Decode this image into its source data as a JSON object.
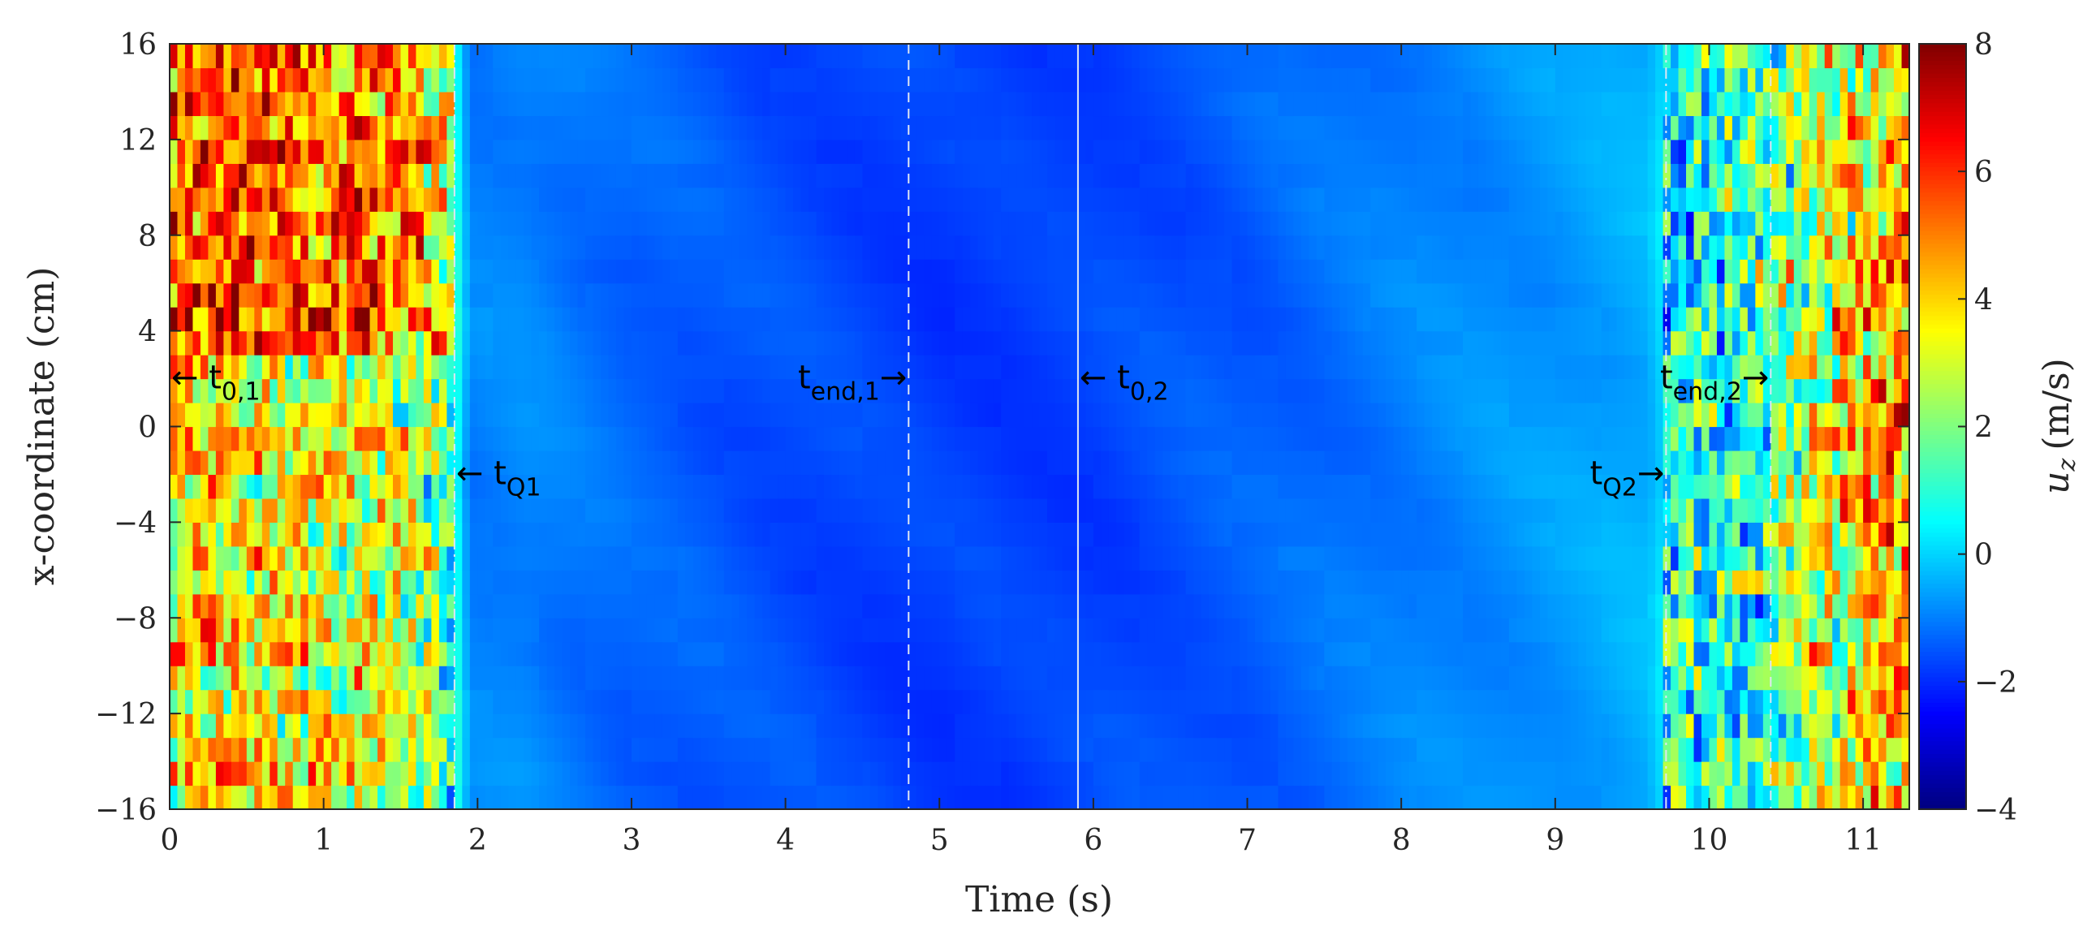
{
  "chart_data": {
    "type": "heatmap",
    "xlabel": "Time (s)",
    "ylabel": "x-coordinate (cm)",
    "colorbar_label": "u",
    "colorbar_label_sub": "z",
    "colorbar_label_unit": "(m/s)",
    "xlim": [
      0,
      11.3
    ],
    "ylim": [
      -16,
      16
    ],
    "clim": [
      -4,
      8
    ],
    "colormap": "jet",
    "x_ticks": [
      "0",
      "1",
      "2",
      "3",
      "4",
      "5",
      "6",
      "7",
      "8",
      "9",
      "10",
      "11"
    ],
    "x_tick_values": [
      0,
      1,
      2,
      3,
      4,
      5,
      6,
      7,
      8,
      9,
      10,
      11
    ],
    "y_ticks": [
      "16",
      "12",
      "8",
      "4",
      "0",
      "−4",
      "−8",
      "−12",
      "−16"
    ],
    "y_tick_values": [
      16,
      12,
      8,
      4,
      0,
      -4,
      -8,
      -12,
      -16
    ],
    "c_ticks": [
      "8",
      "6",
      "4",
      "2",
      "0",
      "−2",
      "−4"
    ],
    "c_tick_values": [
      8,
      6,
      4,
      2,
      0,
      -2,
      -4
    ],
    "time_profile": [
      {
        "t": 0.0,
        "u": 4.5
      },
      {
        "t": 1.5,
        "u": 3.6
      },
      {
        "t": 1.8,
        "u": 2.2
      },
      {
        "t": 1.95,
        "u": -1.0
      },
      {
        "t": 2.3,
        "u": -0.9
      },
      {
        "t": 3.0,
        "u": -1.3
      },
      {
        "t": 4.0,
        "u": -1.6
      },
      {
        "t": 5.0,
        "u": -1.8
      },
      {
        "t": 5.9,
        "u": -1.75
      },
      {
        "t": 7.0,
        "u": -1.4
      },
      {
        "t": 8.0,
        "u": -1.0
      },
      {
        "t": 9.0,
        "u": -0.7
      },
      {
        "t": 9.6,
        "u": -0.4
      },
      {
        "t": 9.75,
        "u": 0.5
      },
      {
        "t": 10.4,
        "u": 1.5
      },
      {
        "t": 11.0,
        "u": 4.0
      },
      {
        "t": 11.3,
        "u": 4.6
      }
    ],
    "markers": [
      {
        "name": "t_0,1",
        "base": "t",
        "sub": "0,1",
        "t": 0.0,
        "y": 2,
        "line_style": "none",
        "arrow": "left"
      },
      {
        "name": "t_Q1",
        "base": "t",
        "sub": "Q1",
        "t": 1.85,
        "y": -2,
        "line_style": "dashdot",
        "arrow": "left"
      },
      {
        "name": "t_end,1",
        "base": "t",
        "sub": "end,1",
        "t": 4.8,
        "y": 2,
        "line_style": "dashed",
        "arrow": "right"
      },
      {
        "name": "t_0,2",
        "base": "t",
        "sub": "0,2",
        "t": 5.9,
        "y": 2,
        "line_style": "solid",
        "arrow": "left"
      },
      {
        "name": "t_Q2",
        "base": "t",
        "sub": "Q2",
        "t": 9.72,
        "y": -2,
        "line_style": "dashdot",
        "arrow": "right"
      },
      {
        "name": "t_end,2",
        "base": "t",
        "sub": "end,2",
        "t": 10.4,
        "y": 2,
        "line_style": "dashed",
        "arrow": "right"
      }
    ],
    "arrow_glyph_left": "←",
    "arrow_glyph_right": "→"
  }
}
